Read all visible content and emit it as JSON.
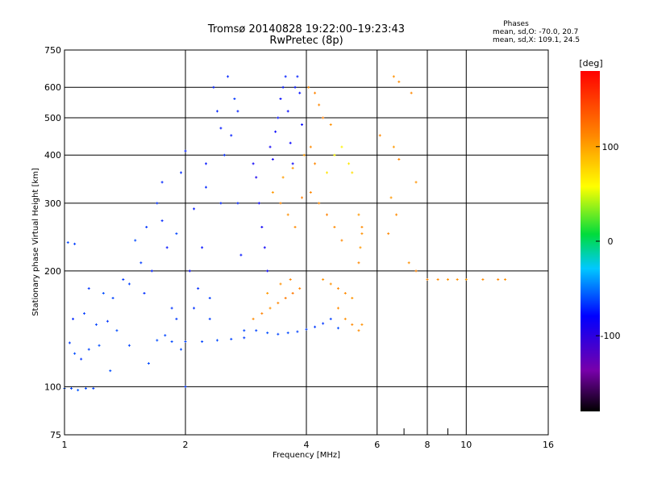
{
  "header": {
    "title_line1": "Tromsø 20140828 19:22:00–19:23:43",
    "title_line2": "RwPretec (8p)"
  },
  "phase_legend": {
    "title": "Phases",
    "line_o": "mean, sd,O: -70.0, 20.7",
    "line_x": "mean, sd,X: 109.1, 24.5"
  },
  "chart_data": {
    "type": "scatter",
    "title": "Tromsø 20140828 19:22:00–19:23:43",
    "subtitle": "RwPretec (8p)",
    "xlabel": "Frequency [MHz]",
    "ylabel": "Stationary phase Virtual Height [km]",
    "xscale": "log",
    "yscale": "log",
    "xlim": [
      1,
      16
    ],
    "ylim": [
      75,
      750
    ],
    "xticks": [
      1,
      2,
      4,
      6,
      8,
      10,
      16
    ],
    "yticks": [
      75,
      100,
      200,
      300,
      400,
      500,
      600,
      750
    ],
    "grid": true,
    "colorbar": {
      "label": "[deg]",
      "range": [
        -180,
        180
      ],
      "ticks": [
        100,
        0,
        -100
      ],
      "colormap": "rainbow"
    },
    "series": [
      {
        "name": "O",
        "points": [
          [
            1.0,
            99,
            -60
          ],
          [
            1.04,
            99,
            -62
          ],
          [
            1.08,
            98,
            -58
          ],
          [
            1.13,
            99,
            -61
          ],
          [
            1.18,
            99,
            -63
          ],
          [
            1.03,
            130,
            -65
          ],
          [
            1.06,
            122,
            -60
          ],
          [
            1.1,
            118,
            -66
          ],
          [
            1.15,
            125,
            -62
          ],
          [
            1.22,
            128,
            -60
          ],
          [
            1.05,
            150,
            -70
          ],
          [
            1.12,
            155,
            -64
          ],
          [
            1.2,
            145,
            -62
          ],
          [
            1.28,
            148,
            -66
          ],
          [
            1.35,
            140,
            -60
          ],
          [
            1.02,
            237,
            -62
          ],
          [
            1.06,
            235,
            -64
          ],
          [
            1.15,
            180,
            -66
          ],
          [
            1.25,
            175,
            -60
          ],
          [
            1.32,
            170,
            -62
          ],
          [
            1.4,
            190,
            -66
          ],
          [
            1.45,
            185,
            -63
          ],
          [
            1.5,
            240,
            -61
          ],
          [
            1.55,
            210,
            -64
          ],
          [
            1.6,
            260,
            -66
          ],
          [
            1.58,
            175,
            -68
          ],
          [
            1.65,
            200,
            -72
          ],
          [
            1.7,
            300,
            -67
          ],
          [
            1.75,
            270,
            -70
          ],
          [
            1.8,
            230,
            -75
          ],
          [
            1.85,
            160,
            -66
          ],
          [
            1.9,
            250,
            -62
          ],
          [
            1.95,
            360,
            -68
          ],
          [
            2.0,
            410,
            -72
          ],
          [
            2.05,
            200,
            -78
          ],
          [
            2.1,
            290,
            -74
          ],
          [
            2.15,
            180,
            -68
          ],
          [
            2.2,
            230,
            -76
          ],
          [
            2.25,
            330,
            -70
          ],
          [
            2.3,
            150,
            -64
          ],
          [
            2.35,
            600,
            -72
          ],
          [
            2.4,
            520,
            -70
          ],
          [
            2.45,
            470,
            -74
          ],
          [
            2.5,
            400,
            -68
          ],
          [
            2.55,
            640,
            -70
          ],
          [
            2.6,
            450,
            -72
          ],
          [
            2.65,
            560,
            -66
          ],
          [
            2.7,
            300,
            -70
          ],
          [
            2.75,
            220,
            -75
          ],
          [
            2.8,
            140,
            -62
          ],
          [
            1.7,
            132,
            -60
          ],
          [
            1.85,
            131,
            -61
          ],
          [
            2.0,
            131,
            -63
          ],
          [
            2.2,
            131,
            -62
          ],
          [
            2.4,
            132,
            -60
          ],
          [
            2.6,
            133,
            -62
          ],
          [
            2.8,
            134,
            -64
          ],
          [
            1.9,
            150,
            -65
          ],
          [
            2.1,
            160,
            -67
          ],
          [
            2.3,
            170,
            -64
          ],
          [
            2.95,
            380,
            -85
          ],
          [
            3.0,
            350,
            -90
          ],
          [
            3.05,
            300,
            -82
          ],
          [
            3.1,
            260,
            -86
          ],
          [
            3.15,
            230,
            -84
          ],
          [
            3.2,
            200,
            -80
          ],
          [
            3.25,
            420,
            -86
          ],
          [
            3.3,
            390,
            -88
          ],
          [
            3.35,
            460,
            -80
          ],
          [
            3.4,
            500,
            -76
          ],
          [
            3.45,
            560,
            -78
          ],
          [
            3.5,
            600,
            -74
          ],
          [
            3.55,
            640,
            -72
          ],
          [
            3.6,
            520,
            -78
          ],
          [
            3.65,
            430,
            -80
          ],
          [
            3.7,
            380,
            -84
          ],
          [
            3.75,
            600,
            -74
          ],
          [
            3.8,
            640,
            -72
          ],
          [
            3.85,
            580,
            -76
          ],
          [
            3.9,
            480,
            -78
          ],
          [
            3.0,
            140,
            -62
          ],
          [
            3.2,
            138,
            -60
          ],
          [
            3.4,
            137,
            -62
          ],
          [
            3.6,
            138,
            -61
          ],
          [
            3.8,
            139,
            -63
          ],
          [
            4.0,
            141,
            -64
          ],
          [
            4.2,
            143,
            -65
          ],
          [
            4.4,
            146,
            -66
          ],
          [
            4.6,
            150,
            -64
          ],
          [
            4.8,
            142,
            -60
          ],
          [
            1.3,
            110,
            -60
          ],
          [
            1.45,
            128,
            -62
          ],
          [
            1.62,
            115,
            -60
          ],
          [
            1.78,
            136,
            -62
          ],
          [
            1.95,
            125,
            -60
          ],
          [
            2.0,
            100,
            -65
          ],
          [
            1.75,
            340,
            -70
          ],
          [
            2.25,
            380,
            -74
          ],
          [
            2.45,
            300,
            -70
          ],
          [
            2.7,
            520,
            -72
          ]
        ]
      },
      {
        "name": "X",
        "points": [
          [
            2.95,
            150,
            110
          ],
          [
            3.1,
            155,
            115
          ],
          [
            3.25,
            160,
            108
          ],
          [
            3.4,
            165,
            112
          ],
          [
            3.55,
            170,
            118
          ],
          [
            3.7,
            175,
            120
          ],
          [
            3.85,
            180,
            114
          ],
          [
            3.2,
            175,
            104
          ],
          [
            3.45,
            185,
            108
          ],
          [
            3.65,
            190,
            112
          ],
          [
            3.3,
            320,
            104
          ],
          [
            3.45,
            300,
            112
          ],
          [
            3.6,
            280,
            108
          ],
          [
            3.75,
            260,
            110
          ],
          [
            3.9,
            310,
            116
          ],
          [
            3.5,
            350,
            102
          ],
          [
            3.7,
            370,
            106
          ],
          [
            3.95,
            400,
            104
          ],
          [
            4.1,
            420,
            110
          ],
          [
            4.2,
            380,
            112
          ],
          [
            4.05,
            600,
            110
          ],
          [
            4.2,
            580,
            114
          ],
          [
            4.3,
            540,
            112
          ],
          [
            4.4,
            500,
            116
          ],
          [
            4.6,
            480,
            108
          ],
          [
            4.1,
            320,
            112
          ],
          [
            4.3,
            300,
            110
          ],
          [
            4.5,
            280,
            114
          ],
          [
            4.7,
            260,
            110
          ],
          [
            4.9,
            240,
            112
          ],
          [
            4.4,
            190,
            106
          ],
          [
            4.6,
            185,
            108
          ],
          [
            4.8,
            180,
            112
          ],
          [
            5.0,
            175,
            110
          ],
          [
            5.2,
            170,
            106
          ],
          [
            4.8,
            160,
            110
          ],
          [
            5.0,
            150,
            108
          ],
          [
            5.2,
            145,
            112
          ],
          [
            5.4,
            140,
            110
          ],
          [
            5.5,
            145,
            108
          ],
          [
            4.5,
            360,
            70
          ],
          [
            4.7,
            400,
            60
          ],
          [
            4.9,
            420,
            62
          ],
          [
            5.1,
            380,
            68
          ],
          [
            5.2,
            360,
            72
          ],
          [
            5.4,
            280,
            104
          ],
          [
            5.5,
            250,
            108
          ],
          [
            5.4,
            210,
            112
          ],
          [
            5.45,
            230,
            104
          ],
          [
            5.5,
            260,
            110
          ],
          [
            6.6,
            640,
            108
          ],
          [
            6.8,
            620,
            110
          ],
          [
            6.1,
            450,
            112
          ],
          [
            6.6,
            420,
            104
          ],
          [
            6.8,
            390,
            114
          ],
          [
            7.3,
            580,
            112
          ],
          [
            7.5,
            340,
            106
          ],
          [
            6.5,
            310,
            104
          ],
          [
            6.7,
            280,
            110
          ],
          [
            6.4,
            250,
            112
          ],
          [
            7.2,
            210,
            108
          ],
          [
            7.5,
            200,
            114
          ],
          [
            8.0,
            190,
            112
          ],
          [
            8.5,
            190,
            110
          ],
          [
            9.0,
            190,
            106
          ],
          [
            9.5,
            190,
            108
          ],
          [
            10.0,
            190,
            104
          ],
          [
            11.0,
            190,
            110
          ],
          [
            12.0,
            190,
            112
          ],
          [
            12.5,
            190,
            108
          ]
        ]
      }
    ],
    "annotations": [
      {
        "label": "Phases",
        "text": "mean, sd,O: -70.0, 20.7"
      },
      {
        "label": "Phases",
        "text": "mean, sd,X: 109.1, 24.5"
      }
    ]
  }
}
